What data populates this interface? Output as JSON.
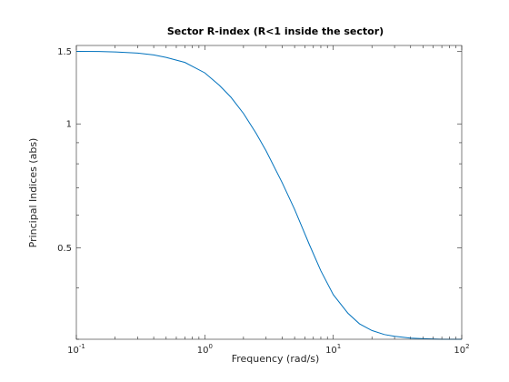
{
  "chart_data": {
    "type": "line",
    "title": "Sector R-index (R<1 inside the sector)",
    "xlabel": "Frequency (rad/s)",
    "ylabel": "Principal Indices (abs)",
    "x_scale": "log",
    "y_scale": "log",
    "xlim": [
      0.1,
      100
    ],
    "ylim": [
      0.3,
      1.55
    ],
    "grid": false,
    "legend": "none",
    "x_ticks": [
      {
        "value": 0.1,
        "base": "10",
        "exp": "-1"
      },
      {
        "value": 1,
        "base": "10",
        "exp": "0"
      },
      {
        "value": 10,
        "base": "10",
        "exp": "1"
      },
      {
        "value": 100,
        "base": "10",
        "exp": "2"
      }
    ],
    "y_ticks": [
      {
        "value": 0.5,
        "label": "0.5"
      },
      {
        "value": 1,
        "label": "1"
      },
      {
        "value": 1.5,
        "label": "1.5"
      }
    ],
    "series": [
      {
        "color": "#0072BD",
        "x": [
          0.1,
          0.15,
          0.2,
          0.3,
          0.4,
          0.5,
          0.7,
          1.0,
          1.3,
          1.6,
          2.0,
          2.5,
          3.0,
          4.0,
          5.0,
          6.5,
          8.0,
          10,
          13,
          16,
          20,
          25,
          30,
          40,
          50,
          70,
          100
        ],
        "y": [
          1.5,
          1.499,
          1.495,
          1.485,
          1.47,
          1.45,
          1.41,
          1.33,
          1.24,
          1.16,
          1.06,
          0.95,
          0.86,
          0.72,
          0.62,
          0.51,
          0.44,
          0.385,
          0.347,
          0.327,
          0.315,
          0.308,
          0.305,
          0.302,
          0.301,
          0.3,
          0.3
        ]
      }
    ]
  }
}
